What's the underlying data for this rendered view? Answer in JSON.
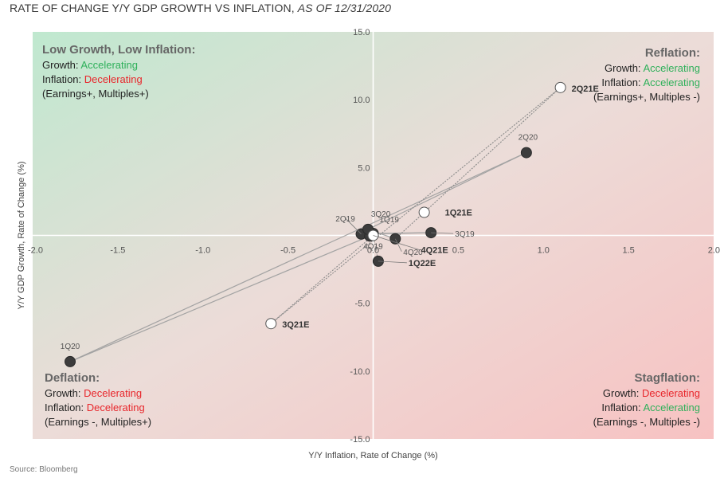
{
  "header": {
    "title_main": "RATE OF CHANGE Y/Y GDP GROWTH VS INFLATION,",
    "title_date": "AS OF 12/31/2020"
  },
  "footer": {
    "source": "Source: Bloomberg"
  },
  "quadrants": {
    "top_left": {
      "title": "Low Growth, Low Inflation:",
      "growth_prefix": "Growth: ",
      "growth_value": "Accelerating",
      "growth_color": "#2eb05a",
      "inflation_prefix": "Inflation: ",
      "inflation_value": "Decelerating",
      "inflation_color": "#e8262b",
      "note": "(Earnings+, Multiples+)"
    },
    "top_right": {
      "title": "Reflation:",
      "growth_prefix": "Growth: ",
      "growth_value": "Accelerating",
      "growth_color": "#2eb05a",
      "inflation_prefix": "Inflation: ",
      "inflation_value": "Accelerating",
      "inflation_color": "#2eb05a",
      "note": "(Earnings+, Multiples -)"
    },
    "bottom_left": {
      "title": "Deflation:",
      "growth_prefix": "Growth: ",
      "growth_value": "Decelerating",
      "growth_color": "#e8262b",
      "inflation_prefix": "Inflation: ",
      "inflation_value": "Decelerating",
      "inflation_color": "#e8262b",
      "note": "(Earnings -, Multiples+)"
    },
    "bottom_right": {
      "title": "Stagflation:",
      "growth_prefix": "Growth: ",
      "growth_value": "Decelerating",
      "growth_color": "#e8262b",
      "inflation_prefix": "Inflation: ",
      "inflation_value": "Accelerating",
      "inflation_color": "#2eb05a",
      "note": "(Earnings -, Multiples -)"
    }
  },
  "chart_data": {
    "type": "scatter",
    "title": "RATE OF CHANGE Y/Y GDP GROWTH VS INFLATION, AS OF 12/31/2020",
    "xlabel": "Y/Y Inflation, Rate of Change (%)",
    "ylabel": "Y/Y GDP Growth, Rate of Change (%)",
    "xlim": [
      -2.0,
      2.0
    ],
    "ylim": [
      -15.0,
      15.0
    ],
    "xticks": [
      -2.0,
      -1.5,
      -1.0,
      -0.5,
      0.0,
      0.5,
      1.0,
      1.5,
      2.0
    ],
    "xtick_labels": [
      "-2.0",
      "-1.5",
      "-1.0",
      "-0.5",
      "0.0",
      "0.5",
      "1.0",
      "1.5",
      "2.0"
    ],
    "yticks": [
      -15.0,
      -10.0,
      -5.0,
      5.0,
      10.0,
      15.0
    ],
    "ytick_labels": [
      "-15.0",
      "-10.0",
      "-5.0",
      "5.0",
      "10.0",
      "15.0"
    ],
    "grid": false,
    "colors": {
      "actual": "#3c3c3c",
      "estimate": "#ffffff",
      "line": "#999999",
      "green_quadrant": "#bfe8cf",
      "red_quadrant": "#f7c2c2"
    },
    "points": [
      {
        "label": "1Q19",
        "x": 0.0,
        "y": 0.15,
        "estimate": false
      },
      {
        "label": "2Q19",
        "x": -0.07,
        "y": 0.1,
        "estimate": false
      },
      {
        "label": "3Q19",
        "x": 0.34,
        "y": 0.2,
        "estimate": false
      },
      {
        "label": "4Q19",
        "x": -0.02,
        "y": -0.05,
        "estimate": false
      },
      {
        "label": "1Q20",
        "x": -1.78,
        "y": -9.3,
        "estimate": false
      },
      {
        "label": "2Q20",
        "x": 0.9,
        "y": 6.1,
        "estimate": false
      },
      {
        "label": "3Q20",
        "x": -0.03,
        "y": 0.45,
        "estimate": false
      },
      {
        "label": "4Q20",
        "x": 0.13,
        "y": -0.25,
        "estimate": false
      },
      {
        "label": "1Q21E",
        "x": 0.3,
        "y": 1.7,
        "estimate": true
      },
      {
        "label": "2Q21E",
        "x": 1.1,
        "y": 10.9,
        "estimate": true
      },
      {
        "label": "3Q21E",
        "x": -0.6,
        "y": -6.5,
        "estimate": true
      },
      {
        "label": "4Q21E",
        "x": 0.0,
        "y": 0.0,
        "estimate": true
      },
      {
        "label": "1Q22E",
        "x": 0.03,
        "y": -1.9,
        "estimate": false
      }
    ],
    "path_order": [
      "2Q19",
      "3Q19",
      "1Q19",
      "4Q19",
      "1Q20",
      "2Q20",
      "3Q20",
      "4Q20",
      "1Q21E",
      "2Q21E",
      "3Q21E",
      "4Q21E",
      "1Q22E"
    ]
  }
}
